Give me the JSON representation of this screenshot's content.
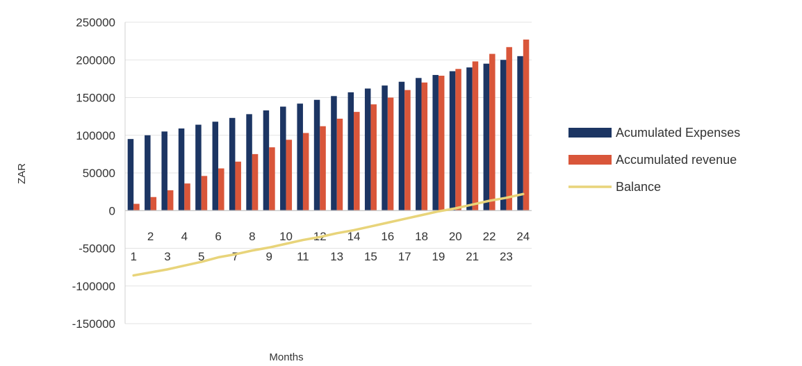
{
  "chart_data": {
    "type": "bar",
    "title": "",
    "xlabel": "Months",
    "ylabel": "ZAR",
    "ylim": [
      -150000,
      250000
    ],
    "yticks": [
      250000,
      200000,
      150000,
      100000,
      50000,
      0,
      -50000,
      -100000,
      -150000
    ],
    "grid": "horizontal",
    "legend_position": "right",
    "categories": [
      "1",
      "2",
      "3",
      "4",
      "5",
      "6",
      "7",
      "8",
      "9",
      "10",
      "11",
      "12",
      "13",
      "14",
      "15",
      "16",
      "17",
      "18",
      "19",
      "20",
      "21",
      "22",
      "23",
      "24"
    ],
    "series": [
      {
        "name": "Acumulated Expenses",
        "kind": "bar",
        "color": "#1c3563",
        "values": [
          95000,
          100000,
          105000,
          109000,
          114000,
          118000,
          123000,
          128000,
          133000,
          138000,
          142000,
          147000,
          152000,
          157000,
          162000,
          166000,
          171000,
          176000,
          180000,
          185000,
          190000,
          195000,
          200000,
          205000
        ]
      },
      {
        "name": "Accumulated revenue",
        "kind": "bar",
        "color": "#d9563a",
        "values": [
          9000,
          18000,
          27000,
          36000,
          46000,
          56000,
          65000,
          75000,
          84000,
          94000,
          103000,
          112000,
          122000,
          131000,
          141000,
          150000,
          160000,
          170000,
          179000,
          188000,
          198000,
          208000,
          217000,
          227000
        ]
      },
      {
        "name": "Balance",
        "kind": "line",
        "color": "#e8d47a",
        "values": [
          -86000,
          -82000,
          -78000,
          -73000,
          -68000,
          -62000,
          -58000,
          -53000,
          -49000,
          -44000,
          -39000,
          -35000,
          -30000,
          -26000,
          -21000,
          -16000,
          -11000,
          -6000,
          -1000,
          3000,
          8000,
          13000,
          17000,
          22000
        ]
      }
    ]
  }
}
